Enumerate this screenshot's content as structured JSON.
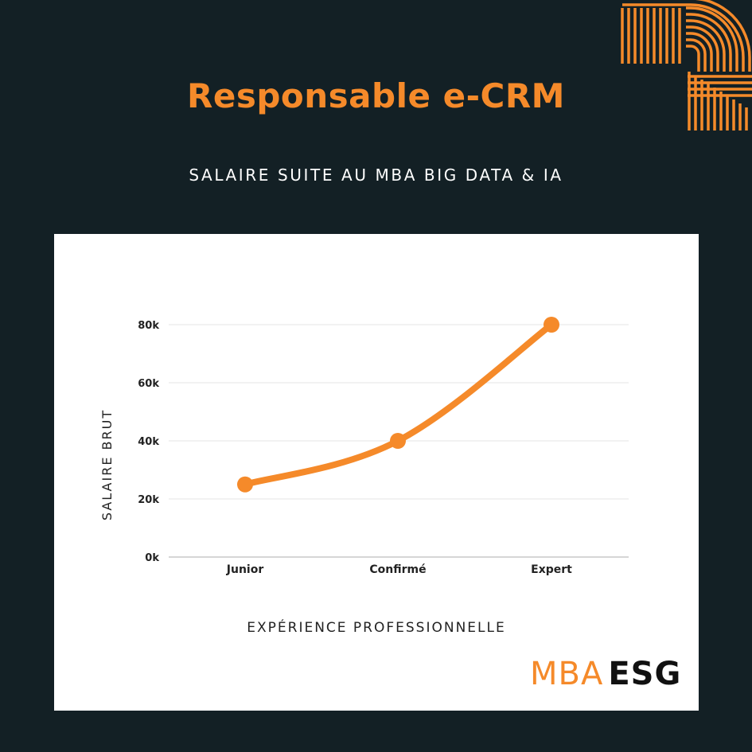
{
  "header": {
    "title": "Responsable e-CRM",
    "subtitle": "SALAIRE SUITE AU MBA BIG DATA & IA"
  },
  "logo": {
    "part1": "MBA",
    "part2": "ESG"
  },
  "colors": {
    "background": "#132025",
    "accent": "#f58a2a",
    "card": "#ffffff",
    "text_dark": "#111111"
  },
  "chart_data": {
    "type": "line",
    "categories": [
      "Junior",
      "Confirmé",
      "Expert"
    ],
    "series": [
      {
        "values": [
          25000,
          40000,
          80000
        ]
      }
    ],
    "yticks": [
      "0k",
      "20k",
      "40k",
      "60k",
      "80k"
    ],
    "ylim": [
      0,
      80000
    ],
    "xlabel": "EXPÉRIENCE PROFESSIONNELLE",
    "ylabel": "SALAIRE BRUT",
    "grid": true,
    "smooth": true,
    "legend": "none"
  }
}
